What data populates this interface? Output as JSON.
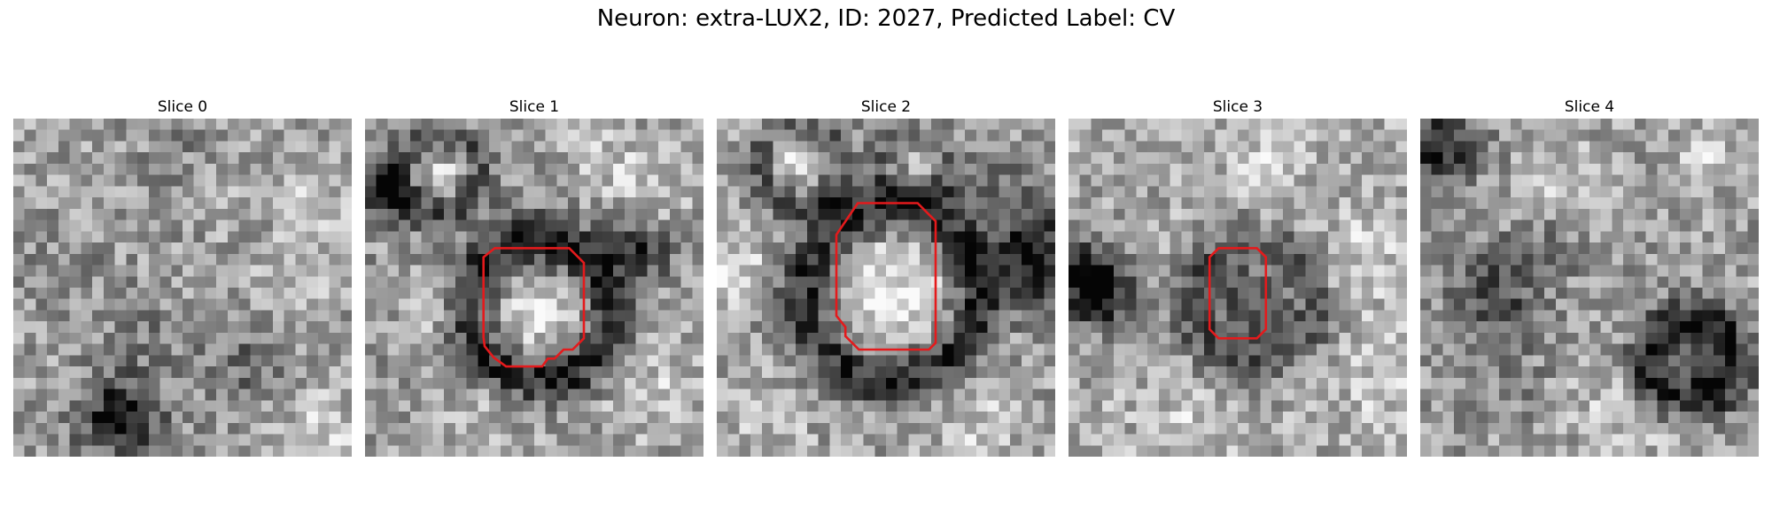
{
  "figure": {
    "title": "Neuron: extra-LUX2, ID: 2027, Predicted Label: CV"
  },
  "colors": {
    "outline": "#e41a1c"
  },
  "slices": [
    {
      "title": "Slice 0",
      "has_outline": false
    },
    {
      "title": "Slice 1",
      "has_outline": true
    },
    {
      "title": "Slice 2",
      "has_outline": true
    },
    {
      "title": "Slice 3",
      "has_outline": true
    },
    {
      "title": "Slice 4",
      "has_outline": false
    }
  ]
}
